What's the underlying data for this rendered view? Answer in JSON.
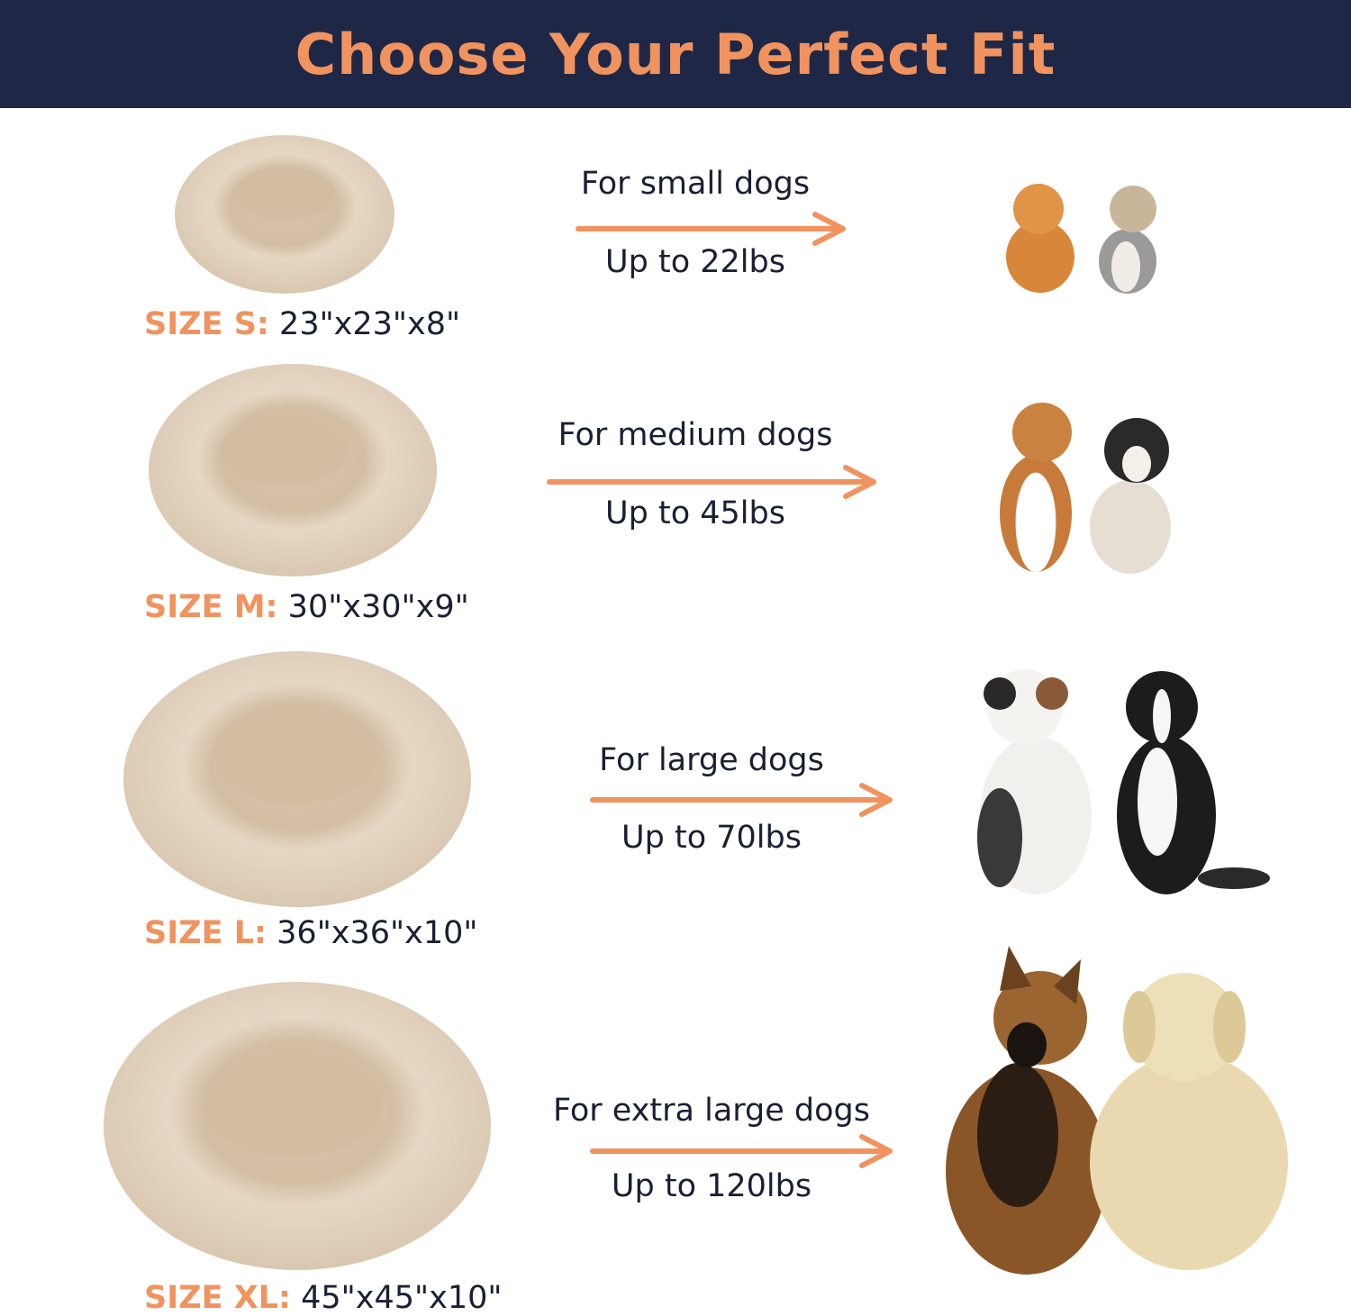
{
  "header": {
    "title": "Choose Your Perfect Fit"
  },
  "colors": {
    "header_bg": "#1f2746",
    "accent": "#f0935f",
    "text": "#1a1f33",
    "bed": "#e0cfba"
  },
  "sizes": [
    {
      "size_key": "SIZE S:",
      "dimensions": "23\"x23\"x8\"",
      "for": "For small dogs",
      "weight": "Up to 22lbs",
      "dogs": [
        "pomeranian",
        "yorkshire-terrier"
      ]
    },
    {
      "size_key": "SIZE M:",
      "dimensions": "30\"x30\"x9\"",
      "for": "For medium dogs",
      "weight": "Up to 45lbs",
      "dogs": [
        "beagle",
        "french-bulldog"
      ]
    },
    {
      "size_key": "SIZE L:",
      "dimensions": "36\"x36\"x10\"",
      "for": "For large dogs",
      "weight": "Up to 70lbs",
      "dogs": [
        "australian-shepherd",
        "border-collie"
      ]
    },
    {
      "size_key": "SIZE XL:",
      "dimensions": "45\"x45\"x10\"",
      "for": "For extra large dogs",
      "weight": "Up to 120lbs",
      "dogs": [
        "german-shepherd",
        "golden-retriever"
      ]
    }
  ]
}
